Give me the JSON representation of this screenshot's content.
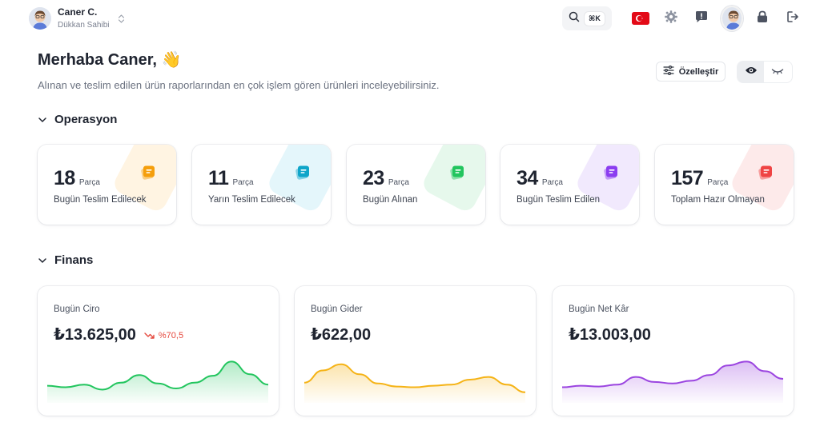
{
  "user": {
    "name": "Caner C.",
    "role": "Dükkan Sahibi"
  },
  "toolbar": {
    "shortcut": "⌘K",
    "icons": [
      "search-icon",
      "turkey-flag-icon",
      "gear-icon",
      "alert-icon",
      "profile-avatar",
      "lock-icon",
      "logout-icon"
    ]
  },
  "greeting": {
    "title": "Merhaba Caner, 👋",
    "subtitle": "Alınan ve teslim edilen ürün raporlarından en çok işlem gören ürünleri inceleyebilirsiniz."
  },
  "actions": {
    "customize_label": "Özelleştir"
  },
  "sections": {
    "operations": "Operasyon",
    "finance": "Finans"
  },
  "operations": [
    {
      "value": "18",
      "unit": "Parça",
      "label": "Bugün Teslim Edilecek",
      "color": "#f59e0b",
      "tint": "#fff4e2"
    },
    {
      "value": "11",
      "unit": "Parça",
      "label": "Yarın Teslim Edilecek",
      "color": "#0ea5c9",
      "tint": "#e4f6fb"
    },
    {
      "value": "23",
      "unit": "Parça",
      "label": "Bugün Alınan",
      "color": "#22c55e",
      "tint": "#e6f8ec"
    },
    {
      "value": "34",
      "unit": "Parça",
      "label": "Bugün Teslim Edilen",
      "color": "#8b3df0",
      "tint": "#f1e9fd"
    },
    {
      "value": "157",
      "unit": "Parça",
      "label": "Toplam Hazır Olmayan",
      "color": "#ef4444",
      "tint": "#fdeaea"
    }
  ],
  "finance": [
    {
      "label": "Bugün Ciro",
      "amount": "₺13.625,00",
      "delta": "%70,5",
      "color": "#22c55e",
      "trend": [
        0.32,
        0.28,
        0.35,
        0.22,
        0.4,
        0.6,
        0.38,
        0.25,
        0.4,
        0.58,
        0.95,
        0.62,
        0.35
      ]
    },
    {
      "label": "Bugün Gider",
      "amount": "₺622,00",
      "delta": "",
      "color": "#f5b316",
      "trend": [
        0.4,
        0.72,
        0.88,
        0.62,
        0.38,
        0.3,
        0.28,
        0.32,
        0.35,
        0.48,
        0.55,
        0.35,
        0.15
      ]
    },
    {
      "label": "Bugün Net Kâr",
      "amount": "₺13.003,00",
      "delta": "",
      "color": "#9b45e0",
      "trend": [
        0.28,
        0.32,
        0.3,
        0.35,
        0.55,
        0.42,
        0.38,
        0.45,
        0.6,
        0.85,
        0.95,
        0.7,
        0.5
      ]
    }
  ]
}
